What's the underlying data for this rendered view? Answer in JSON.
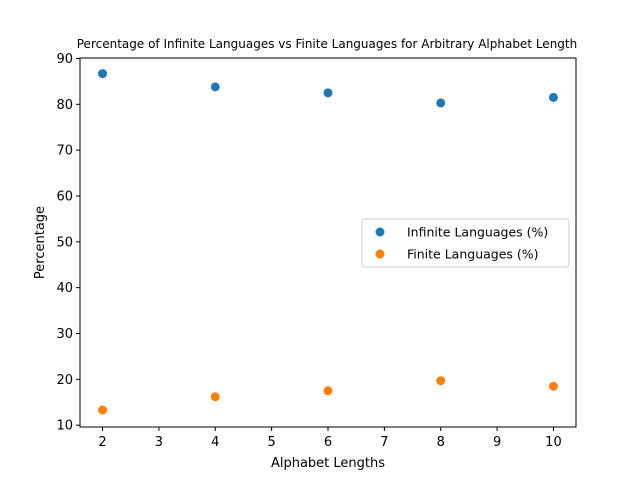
{
  "chart_data": {
    "type": "scatter",
    "title": "Percentage of Infinite Languages vs Finite Languages for Arbitrary Alphabet Length",
    "xlabel": "Alphabet Lengths",
    "ylabel": "Percentage",
    "x": [
      2,
      4,
      6,
      8,
      10
    ],
    "xlim": [
      1.6,
      10.4
    ],
    "ylim": [
      9.6,
      90.1
    ],
    "xticks": [
      2,
      3,
      4,
      5,
      6,
      7,
      8,
      9,
      10
    ],
    "yticks": [
      10,
      20,
      30,
      40,
      50,
      60,
      70,
      80,
      90
    ],
    "grid": false,
    "legend_position": "center-right",
    "series": [
      {
        "name": "Infinite Languages (%)",
        "color": "#1f77b4",
        "values": [
          86.7,
          83.8,
          82.5,
          80.3,
          81.5
        ]
      },
      {
        "name": "Finite Languages (%)",
        "color": "#ff7f0e",
        "values": [
          13.3,
          16.2,
          17.5,
          19.7,
          18.5
        ]
      }
    ]
  }
}
